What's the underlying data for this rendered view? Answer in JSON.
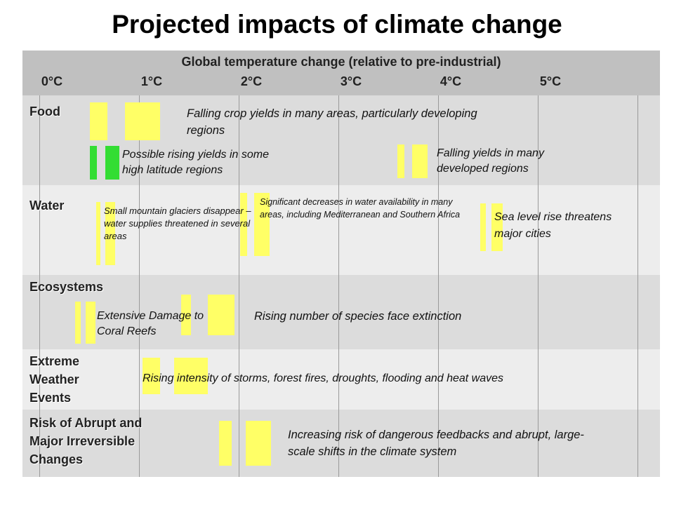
{
  "title": "Projected impacts of climate change",
  "header": {
    "title": "Global temperature change (relative to pre-industrial)",
    "ticks": [
      "0°C",
      "1°C",
      "2°C",
      "3°C",
      "4°C",
      "5°C"
    ]
  },
  "rows": {
    "food": "Food",
    "water": "Water",
    "ecosystems": "Ecosystems",
    "extreme": [
      "Extreme",
      "Weather",
      "Events"
    ],
    "abrupt": [
      "Risk of Abrupt and",
      "Major Irreversible",
      "Changes"
    ]
  },
  "impacts": {
    "food_falling": "Falling crop yields in many areas, particularly developing regions",
    "food_rising": "Possible rising yields in some high latitude regions",
    "food_developed": "Falling yields in many developed regions",
    "water_glaciers": "Small mountain glaciers disappear – water supplies threatened in several areas",
    "water_decrease": "Significant decreases in water availability in many areas, including Mediterranean and Southern Africa",
    "water_sealevel": "Sea level rise threatens major cities",
    "eco_coral": "Extensive Damage to Coral Reefs",
    "eco_species": "Rising number of species face extinction",
    "extreme_storms": "Rising intensity of storms, forest fires, droughts, flooding and heat waves",
    "abrupt_feedbacks": "Increasing risk of dangerous feedbacks and abrupt, large-scale shifts in the climate system"
  },
  "colors": {
    "yellow": "#ffff66",
    "orange": "#ffaa33",
    "red": "#ff2a00",
    "green": "#33dd33",
    "header": "#c0c0c0"
  }
}
